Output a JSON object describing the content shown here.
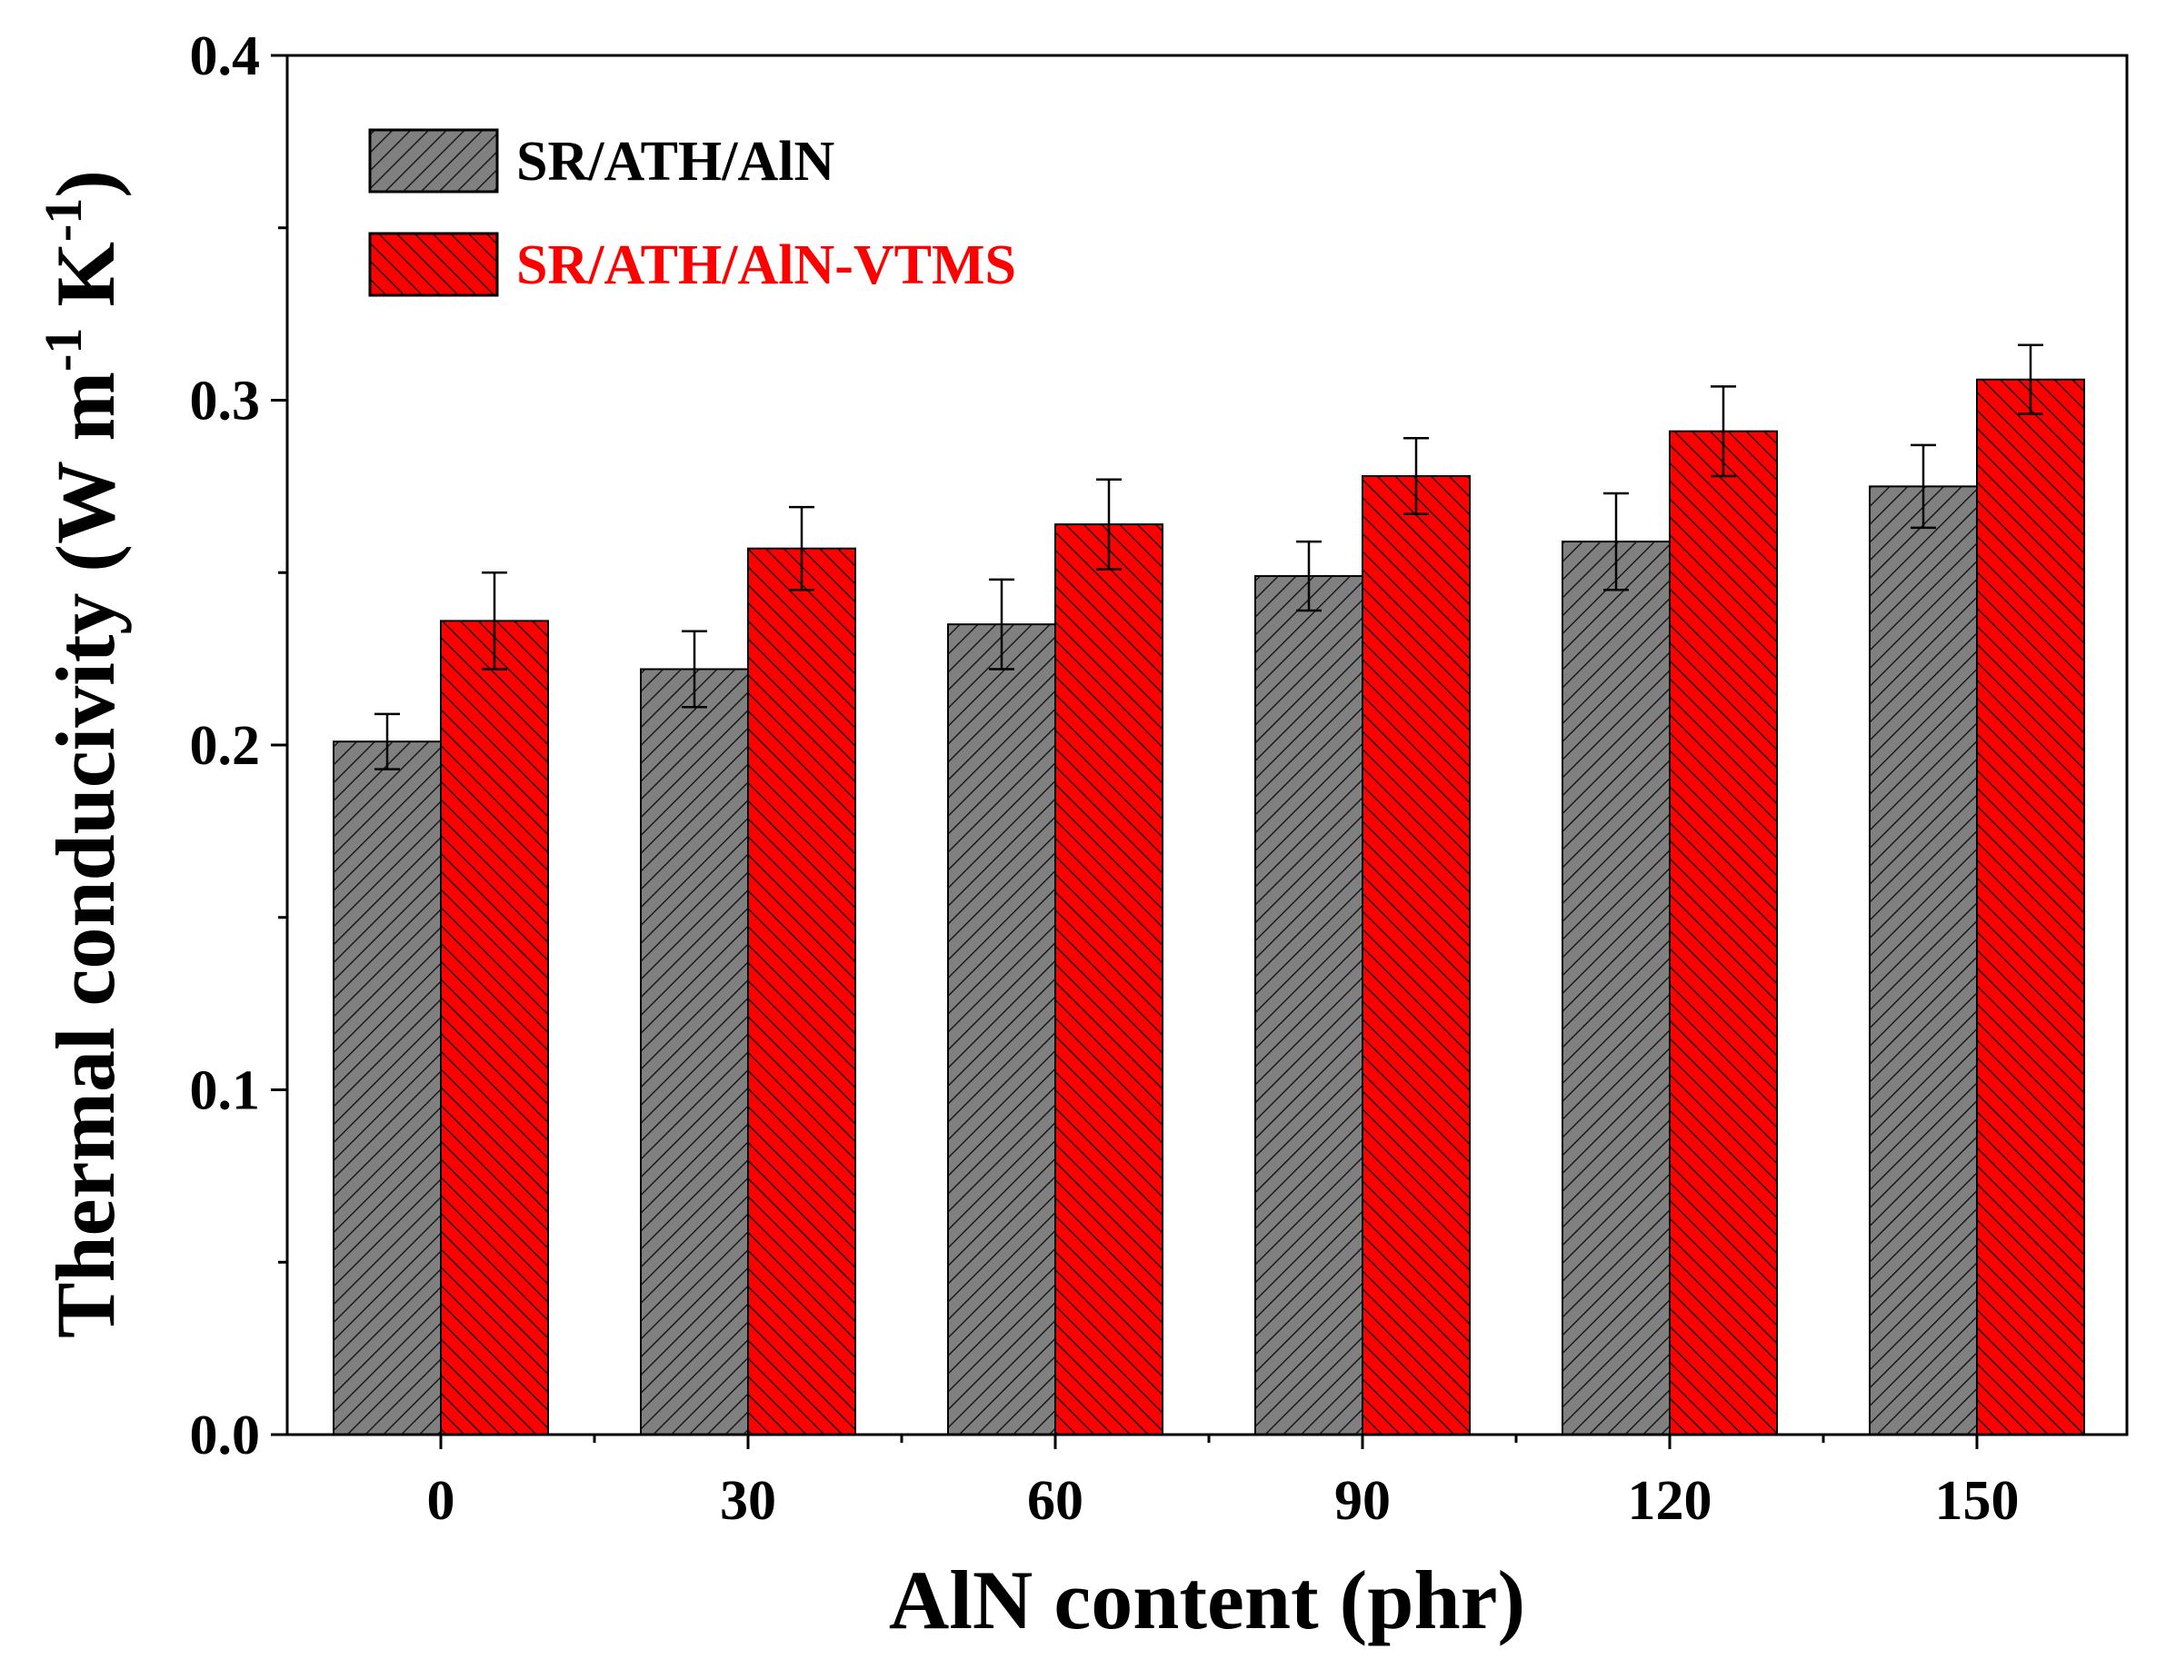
{
  "chart_data": {
    "type": "bar",
    "xlabel": "AlN content (phr)",
    "ylabel_main": "Thermal conducivity (W m",
    "ylabel_sup1": "-1",
    "ylabel_mid": " K",
    "ylabel_sup2": "-1",
    "ylabel_end": ")",
    "categories": [
      "0",
      "30",
      "60",
      "90",
      "120",
      "150"
    ],
    "ylim": [
      0.0,
      0.4
    ],
    "yticks": [
      "0.0",
      "0.1",
      "0.2",
      "0.3",
      "0.4"
    ],
    "yticks_values": [
      0.0,
      0.1,
      0.2,
      0.3,
      0.4
    ],
    "legend_position": "top-left",
    "series": [
      {
        "name": "SR/ATH/AlN",
        "color": "#808080",
        "hatch": "forward-diagonal",
        "values": [
          0.201,
          0.222,
          0.235,
          0.249,
          0.259,
          0.275
        ],
        "errors": [
          0.008,
          0.011,
          0.013,
          0.01,
          0.014,
          0.012
        ]
      },
      {
        "name": "SR/ATH/AlN-VTMS",
        "color": "#ff0000",
        "hatch": "back-diagonal",
        "values": [
          0.236,
          0.257,
          0.264,
          0.278,
          0.291,
          0.306
        ],
        "errors": [
          0.014,
          0.012,
          0.013,
          0.011,
          0.013,
          0.01
        ]
      }
    ]
  }
}
